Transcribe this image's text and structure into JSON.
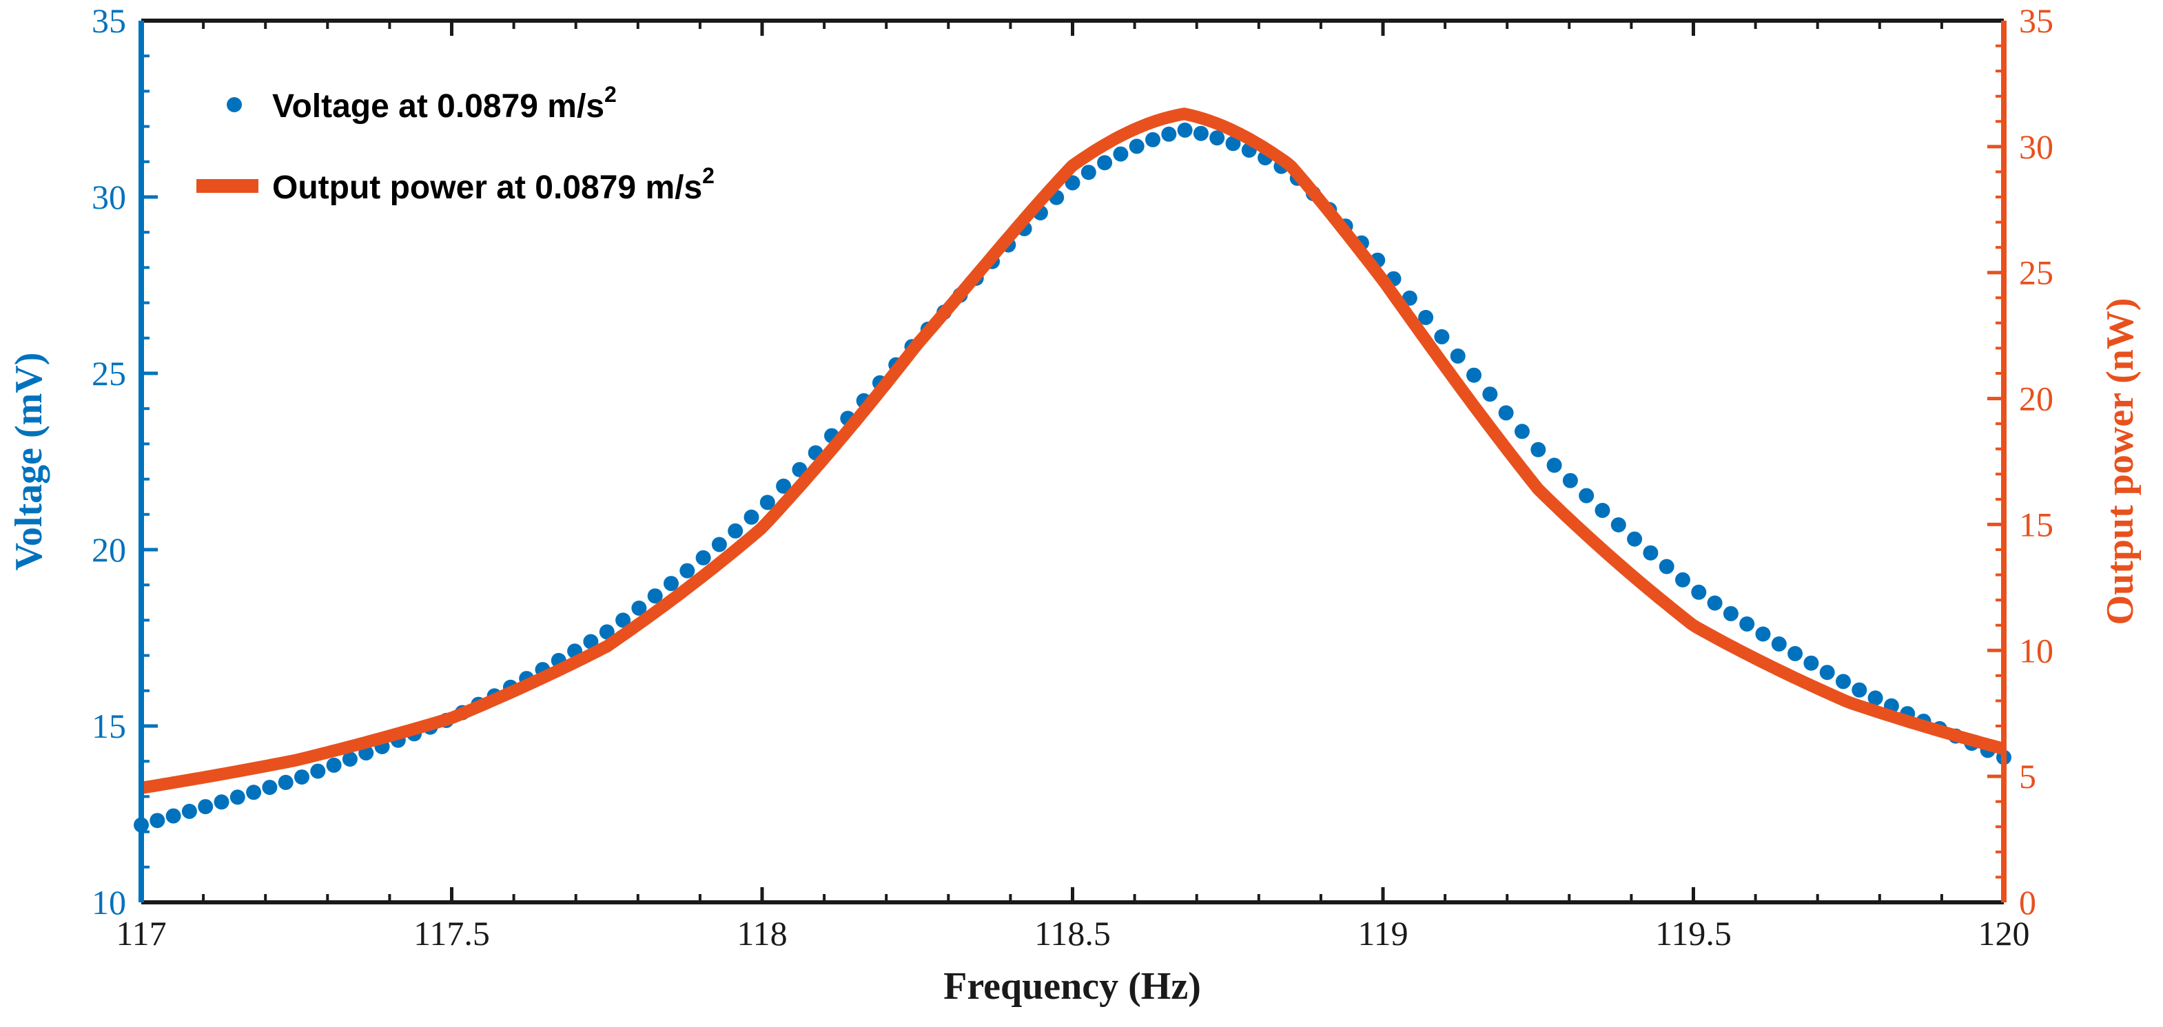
{
  "colors": {
    "voltage": "#0072BD",
    "power": "#E8511E",
    "axis_black": "#1a1a1a"
  },
  "chart_data": {
    "type": "line",
    "title": "",
    "xlabel": "Frequency (Hz)",
    "ylabel_left": "Voltage (mV)",
    "ylabel_right": "Output power (nW)",
    "xlim": [
      117,
      120
    ],
    "ylim_left": [
      10,
      35
    ],
    "ylim_right": [
      0,
      35
    ],
    "xticks": [
      "117",
      "117.5",
      "118",
      "118.5",
      "119",
      "119.5",
      "120"
    ],
    "yticks_left": [
      "10",
      "15",
      "20",
      "25",
      "30",
      "35"
    ],
    "yticks_right": [
      "0",
      "5",
      "10",
      "15",
      "20",
      "25",
      "30",
      "35"
    ],
    "grid": false,
    "legend_position": "top-left",
    "series": [
      {
        "name": "Voltage at 0.0879 m/s",
        "superscript": "2",
        "axis": "left",
        "style": "markers",
        "peak_frequency": 118.68,
        "x": [
          117.0,
          117.25,
          117.5,
          117.75,
          118.0,
          118.25,
          118.5,
          118.68,
          118.85,
          119.0,
          119.25,
          119.5,
          119.75,
          120.0
        ],
        "values": [
          11.2,
          12.9,
          15.0,
          17.8,
          21.6,
          26.4,
          30.4,
          31.9,
          30.9,
          28.3,
          23.0,
          19.0,
          16.1,
          13.6
        ]
      },
      {
        "name": "Output power at 0.0879 m/s",
        "superscript": "2",
        "axis": "right",
        "style": "line",
        "peak_frequency": 118.68,
        "x": [
          117.0,
          117.25,
          117.5,
          117.75,
          118.0,
          118.25,
          118.5,
          118.68,
          118.85,
          119.0,
          119.25,
          119.5,
          119.75,
          120.0
        ],
        "values": [
          4.0,
          5.2,
          7.0,
          10.2,
          15.5,
          23.5,
          29.8,
          31.3,
          29.6,
          25.0,
          16.0,
          10.3,
          7.3,
          5.5
        ]
      }
    ]
  }
}
